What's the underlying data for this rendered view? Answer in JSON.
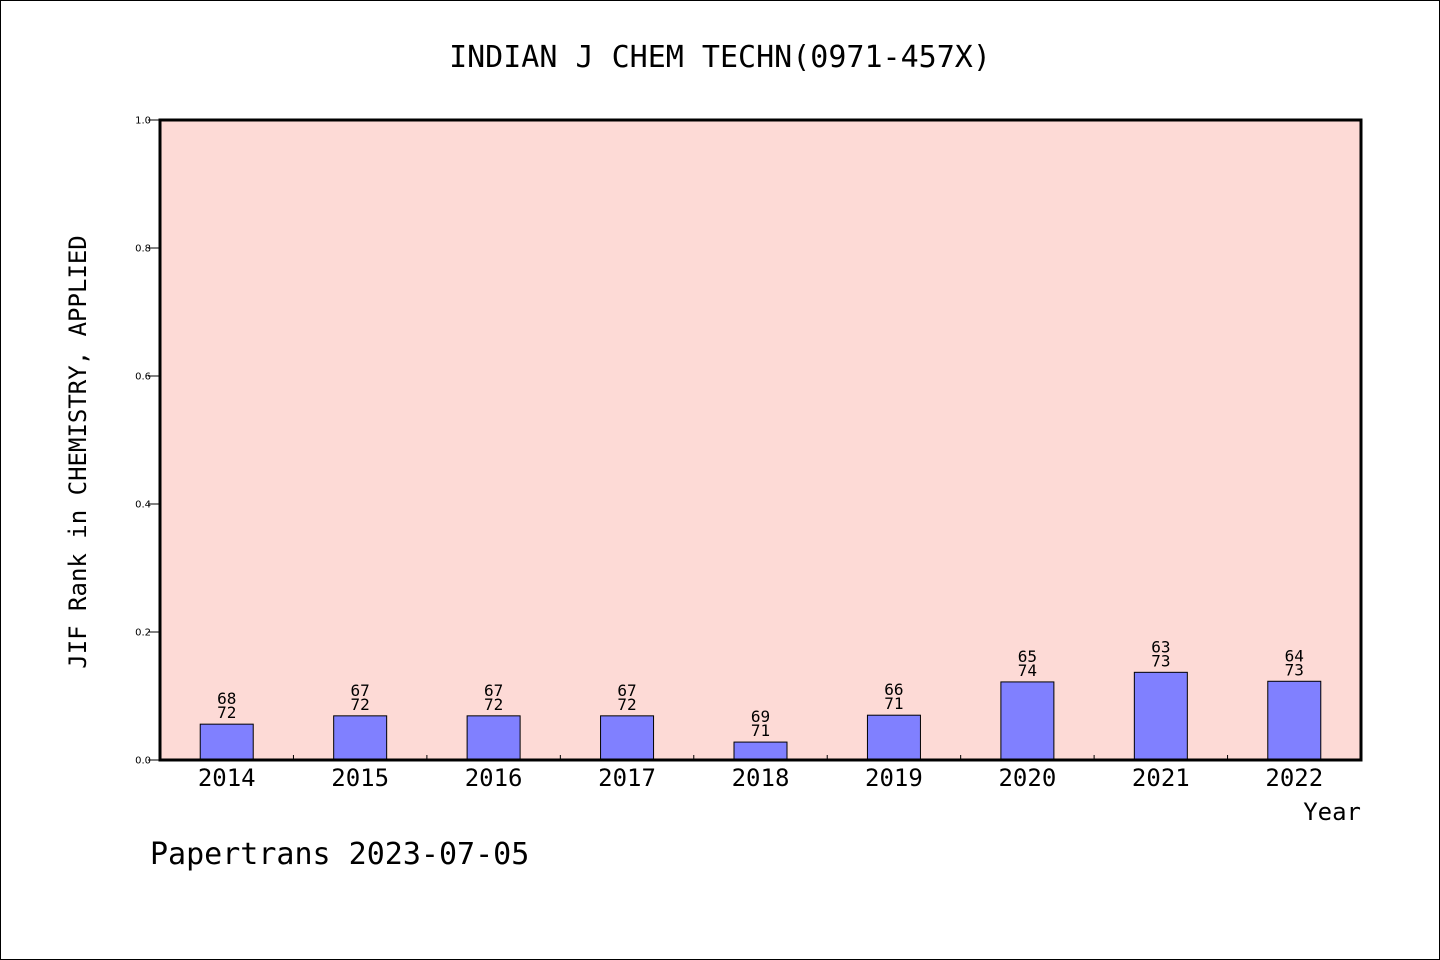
{
  "chart_data": {
    "type": "bar",
    "title": "INDIAN J CHEM TECHN(0971-457X)",
    "xlabel": "Year",
    "ylabel": "JIF Rank in CHEMISTRY, APPLIED",
    "ylim": [
      0.0,
      1.0
    ],
    "yticks": [
      "0.0",
      "0.2",
      "0.4",
      "0.6",
      "0.8",
      "1.0"
    ],
    "categories": [
      "2014",
      "2015",
      "2016",
      "2017",
      "2018",
      "2019",
      "2020",
      "2021",
      "2022"
    ],
    "values": [
      0.056,
      0.069,
      0.069,
      0.069,
      0.028,
      0.07,
      0.122,
      0.137,
      0.123
    ],
    "rank_labels": [
      "68",
      "67",
      "67",
      "67",
      "69",
      "66",
      "65",
      "63",
      "64"
    ],
    "total_labels": [
      "72",
      "72",
      "72",
      "72",
      "71",
      "71",
      "74",
      "73",
      "73"
    ],
    "grid": false,
    "colors": {
      "plot_background": "#fddad6",
      "bar": "#8080ff"
    }
  },
  "footer": "Papertrans 2023-07-05"
}
